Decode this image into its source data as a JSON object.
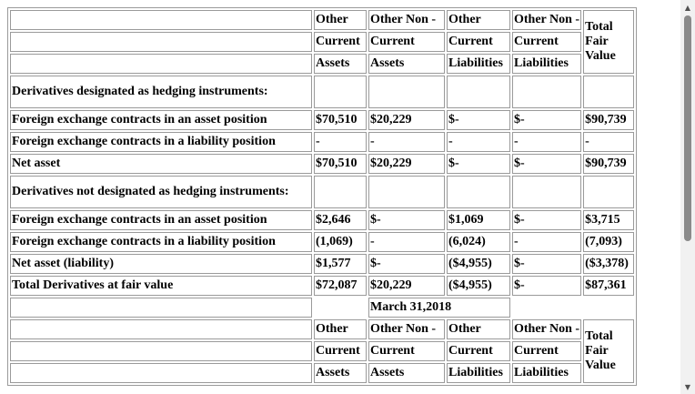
{
  "header_a": {
    "col1": "Other Current Assets",
    "col2": "Other Non - Current Assets",
    "col3": "Other Current Liabilities",
    "col4": "Other Non - Current Liabilities",
    "col5": "Total Fair Value"
  },
  "designated_heading": "Derivatives designated as hedging instruments:",
  "designated_rows": [
    {
      "label": "Foreign exchange contracts in an asset position",
      "c1": "$70,510",
      "c2": "$20,229",
      "c3": "$-",
      "c4": "$-",
      "c5": "$90,739"
    },
    {
      "label": "Foreign exchange contracts in a liability position",
      "c1": "-",
      "c2": "-",
      "c3": "-",
      "c4": "-",
      "c5": "-"
    },
    {
      "label": "Net asset",
      "c1": "$70,510",
      "c2": "$20,229",
      "c3": "$-",
      "c4": "$-",
      "c5": "$90,739"
    }
  ],
  "not_designated_heading": "Derivatives not designated as hedging instruments:",
  "not_designated_rows": [
    {
      "label": "Foreign exchange contracts in an asset position",
      "c1": "$2,646",
      "c2": "$-",
      "c3": "$1,069",
      "c4": "$-",
      "c5": "$3,715"
    },
    {
      "label": "Foreign exchange contracts in a liability position",
      "c1": "(1,069)",
      "c2": "-",
      "c3": "(6,024)",
      "c4": "-",
      "c5": "(7,093)"
    },
    {
      "label": "Net asset (liability)",
      "c1": "$1,577",
      "c2": "$-",
      "c3": "($4,955)",
      "c4": "$-",
      "c5": "($3,378)"
    },
    {
      "label": "Total Derivatives at fair value",
      "c1": "$72,087",
      "c2": "$20,229",
      "c3": "($4,955)",
      "c4": "$-",
      "c5": "$87,361"
    }
  ],
  "date_heading": "March 31,2018",
  "header_b": {
    "col1": "Other Current Assets",
    "col2": "Other Non - Current Assets",
    "col3": "Other Current Liabilities",
    "col4": "Other Non - Current Liabilities",
    "col5": "Total Fair Value"
  },
  "scrollbar": {
    "up_icon": "▲",
    "down_icon": "▼"
  }
}
